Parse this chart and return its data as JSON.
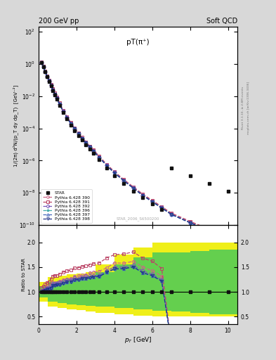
{
  "title_top": "200 GeV pp",
  "title_right": "Soft QCD",
  "plot_title": "pT(π⁺)",
  "watermark": "STAR_2006_S6500200",
  "right_label1": "Rivet 3.1.10, ≥ 2.8M events",
  "right_label2": "mcplots.cern.ch [arXiv:1306.3436]",
  "ylabel_main": "1/(2π) d²N/(p_T dy dp_T)  [GeV⁻²]",
  "ylabel_ratio": "Ratio to STAR",
  "xlabel": "p_T [GeV]",
  "xlim": [
    0,
    10.5
  ],
  "ylim_main_lo": 1e-10,
  "ylim_main_hi": 200,
  "ylim_ratio": [
    0.35,
    2.35
  ],
  "ratio_yticks": [
    0.5,
    1.0,
    1.5,
    2.0
  ],
  "star_x": [
    0.15,
    0.25,
    0.35,
    0.45,
    0.55,
    0.65,
    0.75,
    0.85,
    0.95,
    1.1,
    1.3,
    1.5,
    1.7,
    1.9,
    2.1,
    2.3,
    2.5,
    2.7,
    2.9,
    3.2,
    3.6,
    4.0,
    4.5,
    5.0,
    5.5,
    6.0,
    6.5,
    7.0,
    8.0,
    9.0,
    10.0
  ],
  "star_y": [
    1.2,
    0.65,
    0.32,
    0.16,
    0.083,
    0.043,
    0.022,
    0.012,
    0.0066,
    0.0028,
    0.00095,
    0.00038,
    0.000165,
    7.5e-05,
    3.7e-05,
    1.85e-05,
    9.8e-06,
    5.3e-06,
    3e-06,
    1.2e-06,
    3.5e-07,
    1.2e-07,
    3.8e-08,
    1.3e-08,
    5e-09,
    2.1e-09,
    9.5e-10,
    3.5e-07,
    1.2e-07,
    3.8e-08,
    1.3e-08
  ],
  "py390_x": [
    0.15,
    0.25,
    0.35,
    0.45,
    0.55,
    0.65,
    0.75,
    0.85,
    0.95,
    1.1,
    1.3,
    1.5,
    1.7,
    1.9,
    2.1,
    2.3,
    2.5,
    2.7,
    2.9,
    3.2,
    3.6,
    4.0,
    4.5,
    5.0,
    5.5,
    6.0,
    6.5,
    7.0,
    8.0,
    9.0,
    10.0
  ],
  "py390_y": [
    1.2,
    0.68,
    0.34,
    0.175,
    0.092,
    0.048,
    0.026,
    0.014,
    0.0078,
    0.0034,
    0.00118,
    0.00048,
    0.00021,
    9.8e-05,
    4.9e-05,
    2.48e-05,
    1.32e-05,
    7.3e-06,
    4.2e-06,
    1.7e-06,
    5.2e-07,
    1.9e-07,
    6e-08,
    2.1e-08,
    7.5e-09,
    3e-09,
    1.25e-09,
    5e-10,
    1.5e-10,
    5e-11,
    1.5e-11
  ],
  "py391_x": [
    0.15,
    0.25,
    0.35,
    0.45,
    0.55,
    0.65,
    0.75,
    0.85,
    0.95,
    1.1,
    1.3,
    1.5,
    1.7,
    1.9,
    2.1,
    2.3,
    2.5,
    2.7,
    2.9,
    3.2,
    3.6,
    4.0,
    4.5,
    5.0,
    5.5,
    6.0,
    6.5,
    7.0,
    8.0,
    9.0,
    10.0
  ],
  "py391_y": [
    1.3,
    0.72,
    0.37,
    0.19,
    0.1,
    0.054,
    0.029,
    0.016,
    0.0088,
    0.0038,
    0.00133,
    0.00054,
    0.000238,
    0.000111,
    5.5e-05,
    2.8e-05,
    1.49e-05,
    8.2e-06,
    4.7e-06,
    1.9e-06,
    5.9e-07,
    2.1e-07,
    6.7e-08,
    2.35e-08,
    8.4e-09,
    3.4e-09,
    1.4e-09,
    5.6e-10,
    1.7e-10,
    5.5e-11,
    1.7e-11
  ],
  "py392_x": [
    0.15,
    0.25,
    0.35,
    0.45,
    0.55,
    0.65,
    0.75,
    0.85,
    0.95,
    1.1,
    1.3,
    1.5,
    1.7,
    1.9,
    2.1,
    2.3,
    2.5,
    2.7,
    2.9,
    3.2,
    3.6,
    4.0,
    4.5,
    5.0,
    5.5,
    6.0,
    6.5,
    7.0,
    8.0,
    9.0,
    10.0
  ],
  "py392_y": [
    1.22,
    0.67,
    0.335,
    0.172,
    0.09,
    0.047,
    0.0255,
    0.014,
    0.0077,
    0.0033,
    0.00115,
    0.00047,
    0.000205,
    9.6e-05,
    4.7e-05,
    2.4e-05,
    1.28e-05,
    7e-06,
    4e-06,
    1.6e-06,
    5e-07,
    1.8e-07,
    5.7e-08,
    2e-08,
    7.1e-09,
    2.85e-09,
    1.18e-09,
    4.7e-10,
    1.4e-10,
    4.6e-11,
    1.4e-11
  ],
  "py396_x": [
    0.15,
    0.25,
    0.35,
    0.45,
    0.55,
    0.65,
    0.75,
    0.85,
    0.95,
    1.1,
    1.3,
    1.5,
    1.7,
    1.9,
    2.1,
    2.3,
    2.5,
    2.7,
    2.9,
    3.2,
    3.6,
    4.0,
    4.5,
    5.0,
    5.5,
    6.0,
    6.5,
    7.0,
    8.0,
    9.0,
    10.0
  ],
  "py396_y": [
    1.2,
    0.655,
    0.328,
    0.168,
    0.088,
    0.046,
    0.0248,
    0.0136,
    0.0075,
    0.0032,
    0.00111,
    0.000453,
    0.000198,
    9.27e-05,
    4.59e-05,
    2.33e-05,
    1.24e-05,
    6.8e-06,
    3.9e-06,
    1.6e-06,
    4.85e-07,
    1.75e-07,
    5.55e-08,
    1.95e-08,
    6.9e-09,
    2.77e-09,
    1.15e-09,
    4.6e-10,
    1.38e-10,
    4.5e-11,
    1.37e-11
  ],
  "py397_x": [
    0.15,
    0.25,
    0.35,
    0.45,
    0.55,
    0.65,
    0.75,
    0.85,
    0.95,
    1.1,
    1.3,
    1.5,
    1.7,
    1.9,
    2.1,
    2.3,
    2.5,
    2.7,
    2.9,
    3.2,
    3.6,
    4.0,
    4.5,
    5.0,
    5.5,
    6.0,
    6.5,
    7.0,
    8.0,
    9.0,
    10.0
  ],
  "py397_y": [
    1.21,
    0.663,
    0.332,
    0.17,
    0.089,
    0.0464,
    0.0251,
    0.0137,
    0.0076,
    0.00323,
    0.00112,
    0.000457,
    0.0002,
    9.35e-05,
    4.63e-05,
    2.35e-05,
    1.25e-05,
    6.9e-06,
    3.9e-06,
    1.58e-06,
    4.9e-07,
    1.76e-07,
    5.6e-08,
    1.96e-08,
    6.95e-09,
    2.8e-09,
    1.16e-09,
    4.64e-10,
    1.39e-10,
    4.53e-11,
    1.38e-11
  ],
  "py398_x": [
    0.15,
    0.25,
    0.35,
    0.45,
    0.55,
    0.65,
    0.75,
    0.85,
    0.95,
    1.1,
    1.3,
    1.5,
    1.7,
    1.9,
    2.1,
    2.3,
    2.5,
    2.7,
    2.9,
    3.2,
    3.6,
    4.0,
    4.5,
    5.0,
    5.5,
    6.0,
    6.5,
    7.0,
    8.0,
    9.0,
    10.0
  ],
  "py398_y": [
    1.205,
    0.658,
    0.33,
    0.169,
    0.0883,
    0.0461,
    0.0249,
    0.0136,
    0.0075,
    0.00321,
    0.00111,
    0.000454,
    0.000199,
    9.29e-05,
    4.61e-05,
    2.34e-05,
    1.24e-05,
    6.8e-06,
    3.9e-06,
    1.57e-06,
    4.87e-07,
    1.755e-07,
    5.57e-08,
    1.955e-08,
    6.92e-09,
    2.785e-09,
    1.155e-09,
    4.62e-10,
    1.386e-10,
    4.51e-11,
    1.375e-11
  ],
  "color_390": "#cc6688",
  "color_391": "#bb4466",
  "color_392": "#7755bb",
  "color_396": "#44aaaa",
  "color_397": "#4466bb",
  "color_398": "#223388",
  "color_star": "#111111",
  "band_yellow_xedges": [
    0.0,
    0.5,
    1.0,
    1.5,
    2.0,
    2.5,
    3.0,
    4.0,
    5.0,
    6.0,
    7.0,
    8.0,
    9.0,
    10.5
  ],
  "band_yellow_lo": [
    0.8,
    0.7,
    0.67,
    0.65,
    0.63,
    0.6,
    0.58,
    0.55,
    0.52,
    0.5,
    0.5,
    0.5,
    0.5
  ],
  "band_yellow_hi": [
    1.2,
    1.3,
    1.33,
    1.35,
    1.37,
    1.4,
    1.55,
    1.75,
    1.9,
    2.0,
    2.0,
    2.0,
    2.0
  ],
  "band_green_xedges": [
    0.0,
    0.5,
    1.0,
    1.5,
    2.0,
    2.5,
    3.0,
    4.0,
    5.0,
    6.0,
    7.0,
    8.0,
    9.0,
    10.5
  ],
  "band_green_lo": [
    0.88,
    0.8,
    0.77,
    0.75,
    0.73,
    0.72,
    0.7,
    0.68,
    0.65,
    0.62,
    0.6,
    0.58,
    0.55
  ],
  "band_green_hi": [
    1.12,
    1.2,
    1.23,
    1.25,
    1.27,
    1.28,
    1.4,
    1.55,
    1.7,
    1.8,
    1.8,
    1.82,
    1.85
  ],
  "fig_bg": "#d8d8d8",
  "ax_bg": "#ffffff"
}
